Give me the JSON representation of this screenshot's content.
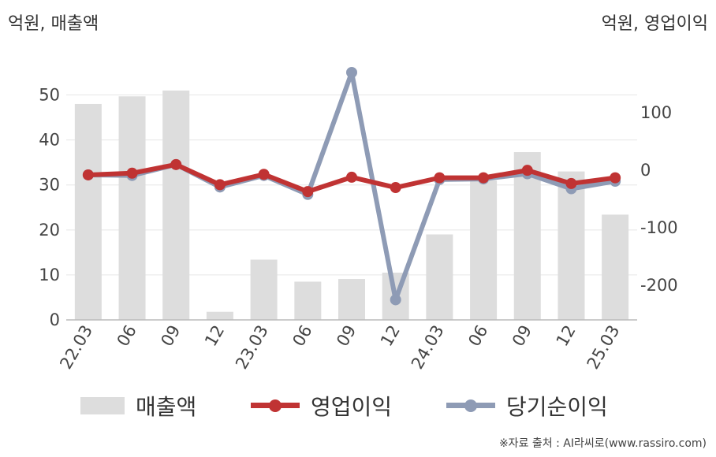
{
  "chart_data": {
    "type": "bar+line",
    "left_axis_label": "억원, 매출액",
    "right_axis_label": "억원, 영업이익",
    "categories": [
      "22.03",
      "06",
      "09",
      "12",
      "23.03",
      "06",
      "09",
      "12",
      "24.03",
      "06",
      "09",
      "12",
      "25.03"
    ],
    "left_ylim": [
      0,
      55
    ],
    "left_ticks": [
      0,
      10,
      20,
      30,
      40,
      50
    ],
    "right_ylim": [
      -260,
      170
    ],
    "right_ticks": [
      -200,
      -100,
      0,
      100
    ],
    "grid": true,
    "legend_position": "bottom",
    "series": [
      {
        "name": "매출액",
        "type": "bar",
        "axis": "left",
        "color": "#dddddd",
        "values": [
          48,
          49.7,
          51,
          1.8,
          13.4,
          8.5,
          9.1,
          10.5,
          19,
          31,
          37.3,
          33,
          23.4
        ]
      },
      {
        "name": "영업이익",
        "type": "line",
        "axis": "right",
        "color": "#c03333",
        "values": [
          -8,
          -5,
          10,
          -25,
          -7,
          -37,
          -12,
          -30,
          -13,
          -13,
          0,
          -23,
          -13
        ]
      },
      {
        "name": "당기순이익",
        "type": "line",
        "axis": "right",
        "color": "#8e9bb5",
        "values": [
          -8,
          -9,
          10,
          -29,
          -9,
          -42,
          170,
          -225,
          -16,
          -15,
          -6,
          -32,
          -19
        ]
      }
    ]
  },
  "legend": {
    "items": [
      {
        "label": "매출액",
        "kind": "bar",
        "color": "#dddddd"
      },
      {
        "label": "영업이익",
        "kind": "line",
        "color": "#c03333"
      },
      {
        "label": "당기순이익",
        "kind": "line",
        "color": "#8e9bb5"
      }
    ]
  },
  "source": "※자료 출처 : AI라씨로(www.rassiro.com)"
}
